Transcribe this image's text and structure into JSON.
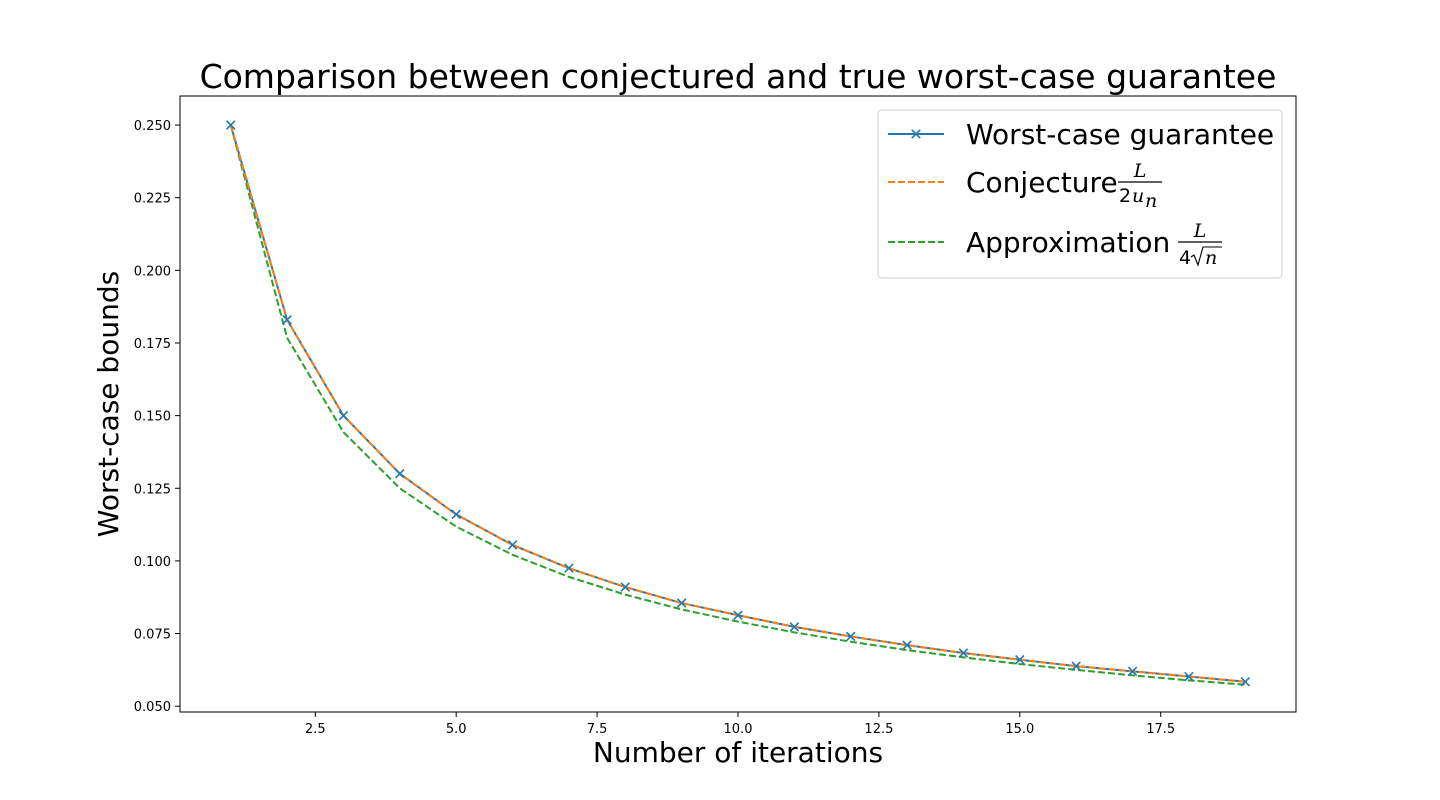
{
  "chart_data": {
    "type": "line",
    "title": "Comparison between conjectured and true worst-case guarantee",
    "xlabel": "Number of iterations",
    "ylabel": "Worst-case bounds",
    "xlim": [
      0.1,
      19.9
    ],
    "ylim": [
      0.048,
      0.26
    ],
    "xticks": [
      2.5,
      5.0,
      7.5,
      10.0,
      12.5,
      15.0,
      17.5
    ],
    "xtick_labels": [
      "2.5",
      "5.0",
      "7.5",
      "10.0",
      "12.5",
      "15.0",
      "17.5"
    ],
    "yticks": [
      0.05,
      0.075,
      0.1,
      0.125,
      0.15,
      0.175,
      0.2,
      0.225,
      0.25
    ],
    "ytick_labels": [
      "0.050",
      "0.075",
      "0.100",
      "0.125",
      "0.150",
      "0.175",
      "0.200",
      "0.225",
      "0.250"
    ],
    "grid": false,
    "legend_placement": "top-right",
    "x": [
      1,
      2,
      3,
      4,
      5,
      6,
      7,
      8,
      9,
      10,
      11,
      12,
      13,
      14,
      15,
      16,
      17,
      18,
      19
    ],
    "series": [
      {
        "name": "Worst-case guarantee",
        "color": "#1f77b4",
        "line_style": "solid",
        "marker": "x",
        "values": [
          0.25,
          0.183,
          0.15,
          0.13,
          0.116,
          0.1055,
          0.0975,
          0.091,
          0.0855,
          0.0813,
          0.0773,
          0.074,
          0.071,
          0.0683,
          0.066,
          0.0638,
          0.062,
          0.0602,
          0.0584
        ]
      },
      {
        "name": "Conjecture",
        "legend_numerator": "L",
        "legend_denominator_coef": "2",
        "legend_denominator_var": "u",
        "legend_denominator_sub": "n",
        "color": "#ff7f0e",
        "line_style": "dashed",
        "marker": "none",
        "values": [
          0.25,
          0.183,
          0.15,
          0.13,
          0.116,
          0.1055,
          0.0975,
          0.091,
          0.0855,
          0.0813,
          0.0773,
          0.074,
          0.071,
          0.0683,
          0.066,
          0.0638,
          0.062,
          0.0602,
          0.0584
        ]
      },
      {
        "name": "Approximation",
        "legend_numerator": "L",
        "legend_denominator_coef": "4",
        "legend_denominator_var": "n",
        "color": "#2ca02c",
        "line_style": "dashed",
        "marker": "none",
        "values": [
          0.25,
          0.1768,
          0.1443,
          0.125,
          0.1118,
          0.1021,
          0.0945,
          0.0884,
          0.0833,
          0.0791,
          0.0754,
          0.0722,
          0.0693,
          0.0668,
          0.0645,
          0.0625,
          0.0606,
          0.0589,
          0.0574
        ]
      }
    ]
  }
}
